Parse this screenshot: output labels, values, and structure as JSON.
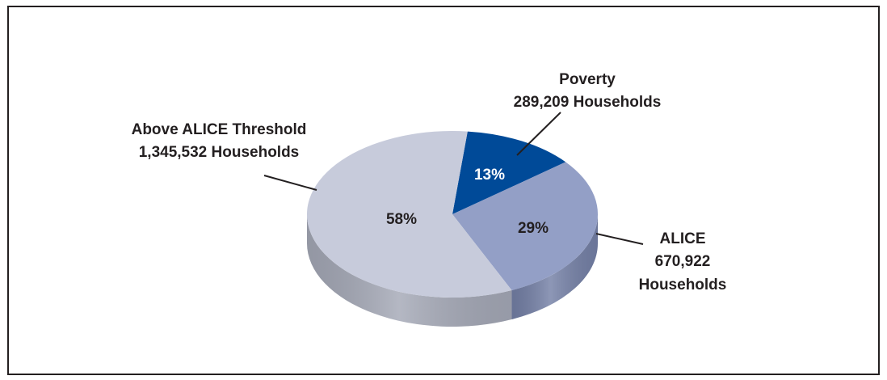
{
  "chart_data": {
    "type": "pie",
    "title": "",
    "slices": [
      {
        "key": "poverty",
        "label": "Poverty",
        "value_text": "289,209 Households",
        "value": 289209,
        "pct_label": "13%",
        "percent": 13,
        "color": "#004a98",
        "side_color": "#003a78",
        "pct_text_color": "#ffffff"
      },
      {
        "key": "alice",
        "label": "ALICE",
        "value_text_1": "670,922",
        "value_text_2": "Households",
        "value": 670922,
        "pct_label": "29%",
        "percent": 29,
        "color": "#939fc6",
        "side_color": "#7480a6",
        "pct_text_color": "#231f20"
      },
      {
        "key": "above",
        "label": "Above ALICE Threshold",
        "value_text": "1,345,532 Households",
        "value": 1345532,
        "pct_label": "58%",
        "percent": 58,
        "color": "#c7cbdb",
        "side_color": "#a4a8b6",
        "pct_text_color": "#231f20"
      }
    ],
    "legend": "none",
    "style": "3d"
  }
}
